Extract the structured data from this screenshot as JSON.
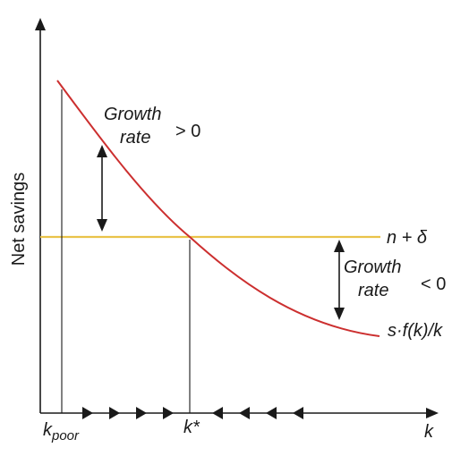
{
  "diagram": {
    "y_axis_label": "Net savings",
    "x_axis_label": "k",
    "k_poor_label": "k",
    "k_poor_subscript": "poor",
    "k_star_label": "k*",
    "depreciation_line_label": "n + δ",
    "savings_curve_label": "s·f(k)/k",
    "growth_positive": {
      "line1": "Growth",
      "line2": "rate",
      "sign": "> 0"
    },
    "growth_negative": {
      "line1": "Growth",
      "line2": "rate",
      "sign": "< 0"
    },
    "arrows_right_count": 4,
    "arrows_left_count": 4
  },
  "colors": {
    "axis": "#1a1a1a",
    "savings_curve": "#cc2f2f",
    "depreciation_line": "#eac34a",
    "guides": "#1a1a1a"
  }
}
